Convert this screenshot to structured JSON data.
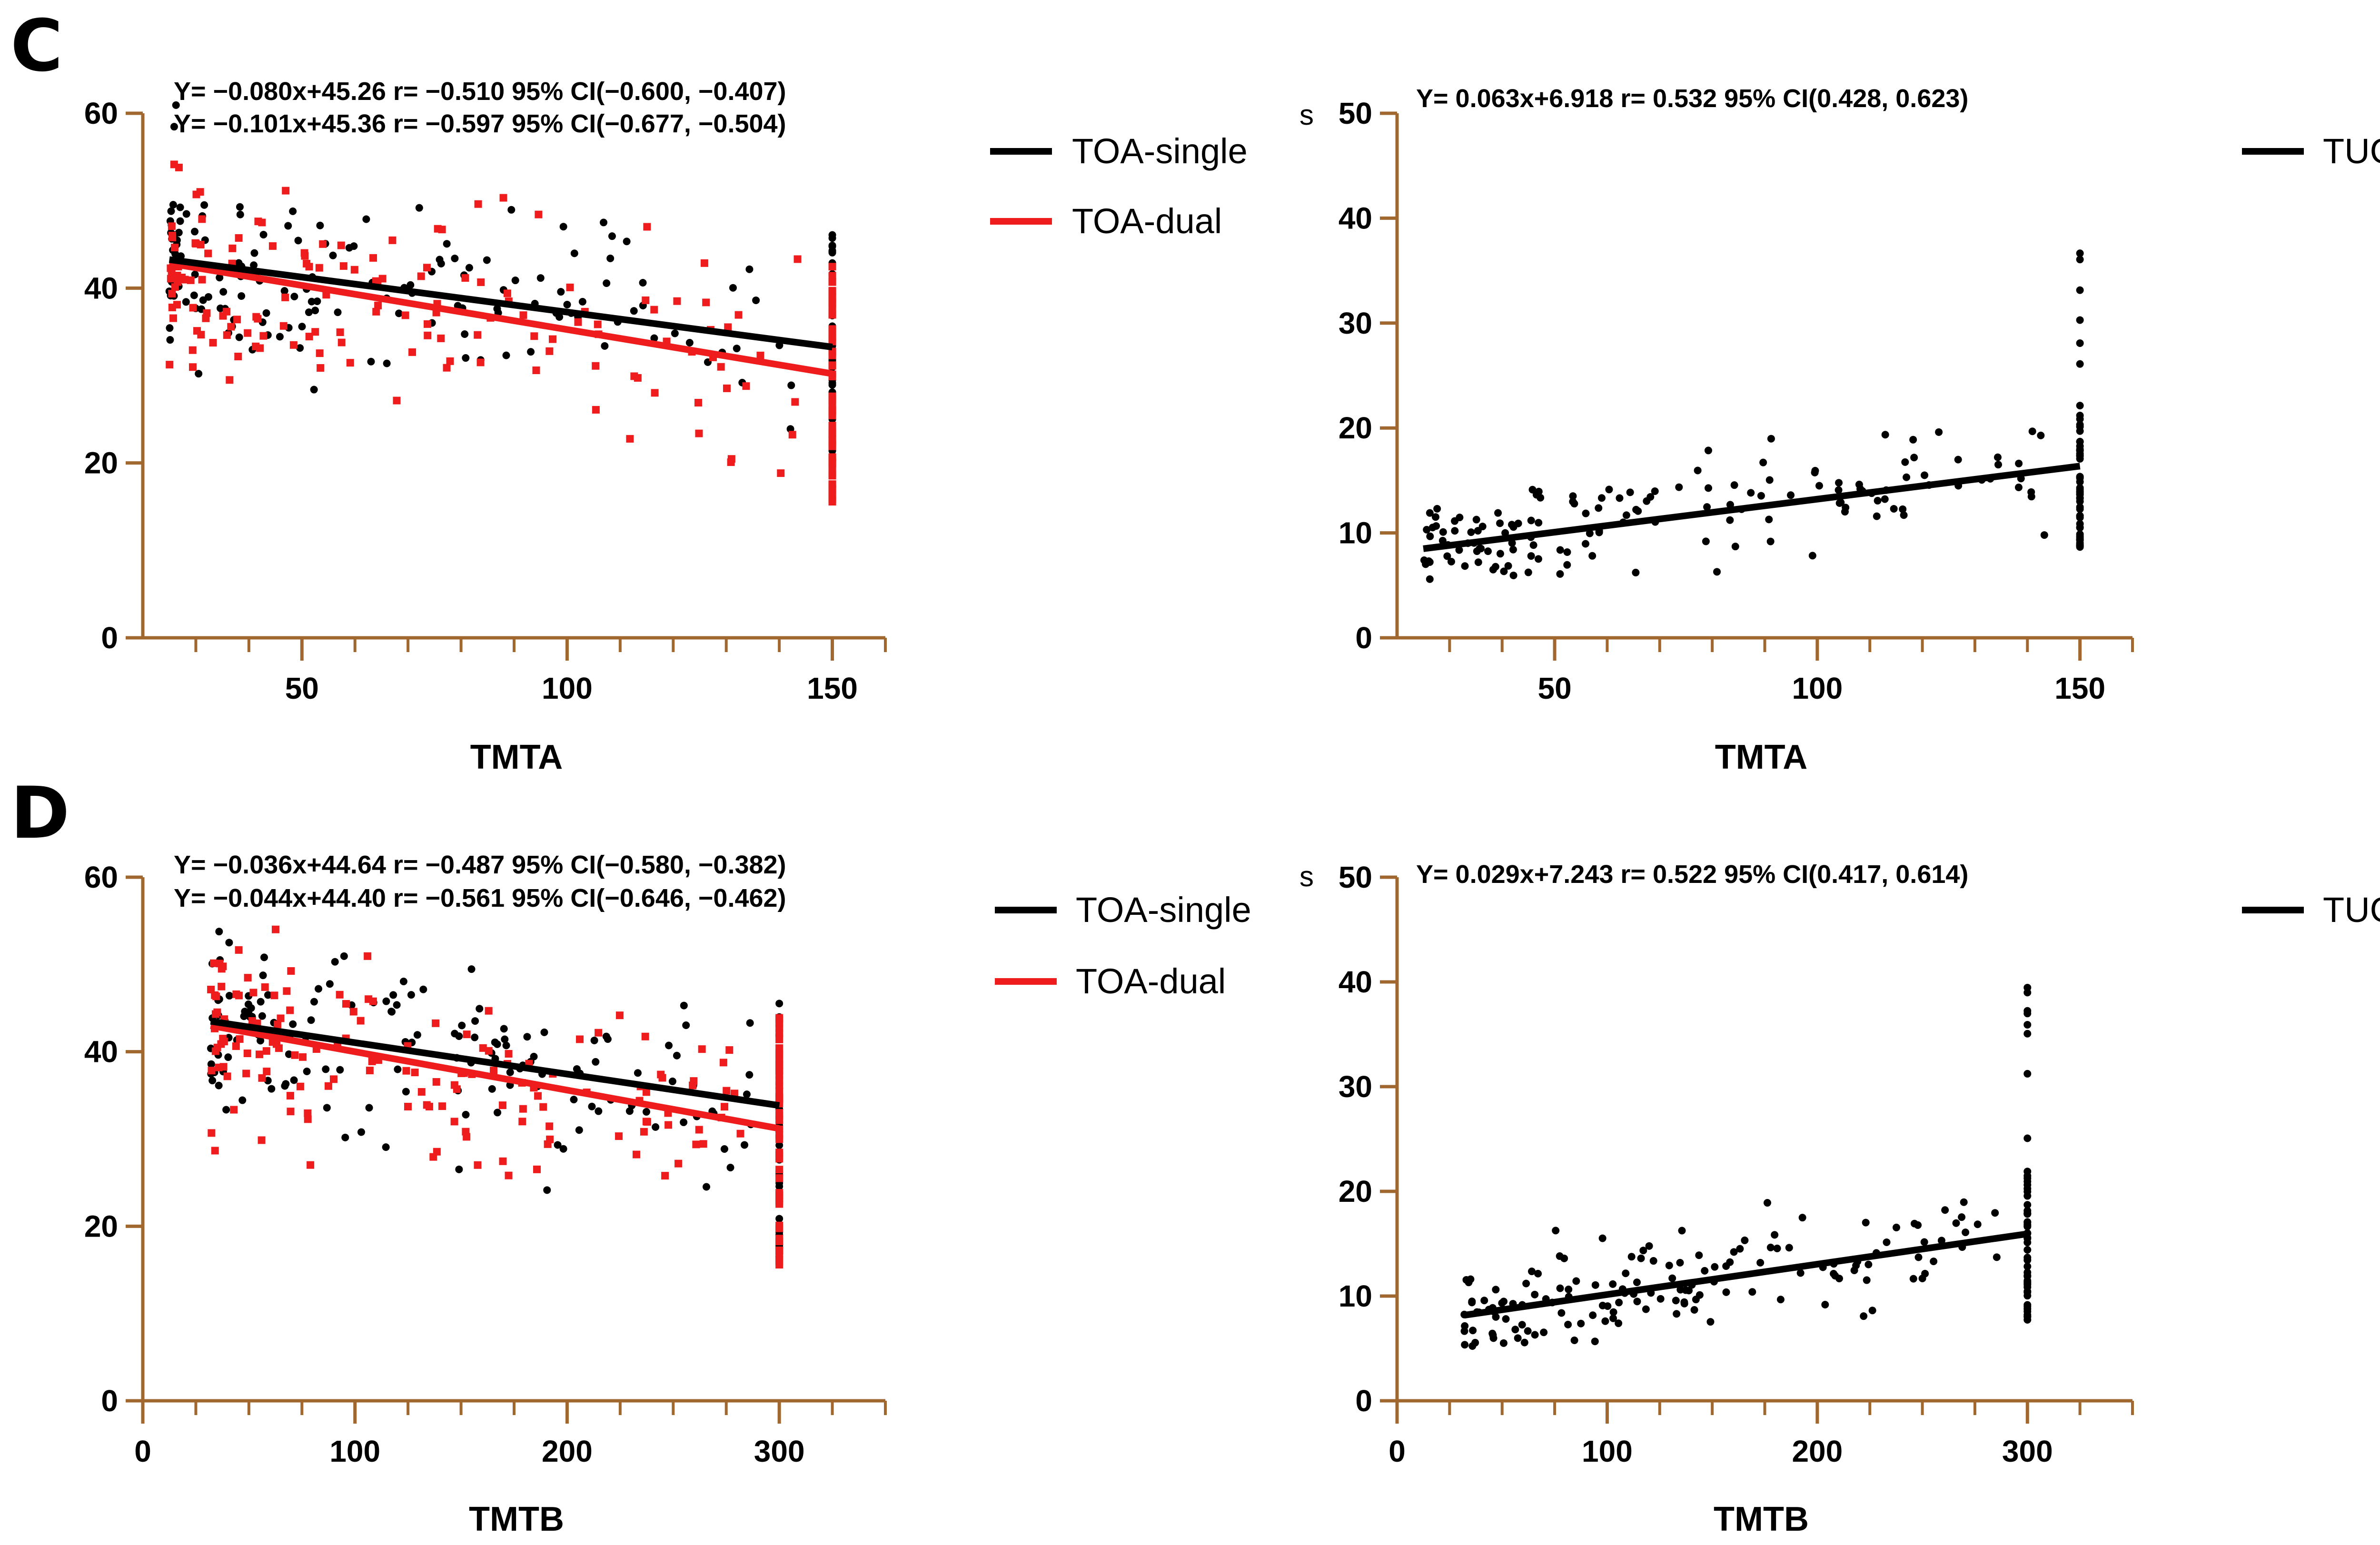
{
  "colors": {
    "axis": "#a0672f",
    "black": "#000000",
    "red": "#ee1c1c"
  },
  "chart_data": [
    {
      "panel": "C",
      "type": "scatter",
      "xlabel": "TMTA",
      "ylabel": "",
      "unit": "",
      "xlim": [
        20,
        160
      ],
      "ylim": [
        0,
        60
      ],
      "xticks": [
        "50",
        "100",
        "150"
      ],
      "yticks": [
        "0",
        "20",
        "40",
        "60"
      ],
      "equations": [
        "Y= −0.080x+45.26  r= −0.510   95% CI(−0.600, −0.407)",
        "Y= −0.101x+45.36  r= −0.597   95% CI(−0.677, −0.504)"
      ],
      "series": [
        {
          "name": "TOA-single",
          "color": "black",
          "marker": "circle",
          "slope": -0.08,
          "intercept": 45.26,
          "fit_range": [
            25,
            150
          ],
          "cap_x": 150,
          "cap_y": [
            16.5,
            46.5
          ],
          "seed": 11,
          "noise": 5.0
        },
        {
          "name": "TOA-dual",
          "color": "red",
          "marker": "square",
          "slope": -0.101,
          "intercept": 45.36,
          "fit_range": [
            25,
            150
          ],
          "cap_x": 150,
          "cap_y": [
            15.5,
            42.5
          ],
          "seed": 23,
          "noise": 5.5
        }
      ]
    },
    {
      "panel": "",
      "type": "scatter",
      "xlabel": "TMTA",
      "ylabel": "",
      "unit": "s",
      "xlim": [
        20,
        160
      ],
      "ylim": [
        0,
        50
      ],
      "xticks": [
        "50",
        "100",
        "150"
      ],
      "yticks": [
        "0",
        "10",
        "20",
        "30",
        "40",
        "50"
      ],
      "equations": [
        "Y= 0.063x+6.918  r= 0.532    95% CI(0.428, 0.623)"
      ],
      "series": [
        {
          "name": "TUGT",
          "color": "black",
          "marker": "circle",
          "slope": 0.063,
          "intercept": 6.918,
          "fit_range": [
            25,
            150
          ],
          "cap_x": 150,
          "cap_y": [
            8.5,
            39.0
          ],
          "seed": 37,
          "noise": 2.6
        }
      ]
    },
    {
      "panel": "D",
      "type": "scatter",
      "xlabel": "TMTB",
      "ylabel": "",
      "unit": "",
      "xlim": [
        0,
        350
      ],
      "ylim": [
        0,
        60
      ],
      "xticks": [
        "0",
        "100",
        "200",
        "300"
      ],
      "yticks": [
        "0",
        "20",
        "40",
        "60"
      ],
      "equations": [
        "Y= −0.036x+44.64  r= −0.487   95% CI(−0.580, −0.382)",
        "Y= −0.044x+44.40  r= −0.561   95% CI(−0.646, −0.462)"
      ],
      "series": [
        {
          "name": "TOA-single",
          "color": "black",
          "marker": "circle",
          "slope": -0.036,
          "intercept": 44.64,
          "fit_range": [
            32,
            300
          ],
          "cap_x": 300,
          "cap_y": [
            16.0,
            46.5
          ],
          "seed": 53,
          "noise": 4.8
        },
        {
          "name": "TOA-dual",
          "color": "red",
          "marker": "square",
          "slope": -0.044,
          "intercept": 44.4,
          "fit_range": [
            32,
            300
          ],
          "cap_x": 300,
          "cap_y": [
            15.5,
            44.0
          ],
          "seed": 71,
          "noise": 5.5
        }
      ]
    },
    {
      "panel": "",
      "type": "scatter",
      "xlabel": "TMTB",
      "ylabel": "",
      "unit": "s",
      "xlim": [
        0,
        350
      ],
      "ylim": [
        0,
        50
      ],
      "xticks": [
        "0",
        "100",
        "200",
        "300"
      ],
      "yticks": [
        "0",
        "10",
        "20",
        "30",
        "40",
        "50"
      ],
      "equations": [
        "Y= 0.029x+7.243  r= 0.522    95% CI(0.417, 0.614)"
      ],
      "series": [
        {
          "name": "TUGT",
          "color": "black",
          "marker": "circle",
          "slope": 0.029,
          "intercept": 7.243,
          "fit_range": [
            32,
            300
          ],
          "cap_x": 300,
          "cap_y": [
            7.5,
            39.5
          ],
          "seed": 89,
          "noise": 2.4
        }
      ]
    }
  ]
}
